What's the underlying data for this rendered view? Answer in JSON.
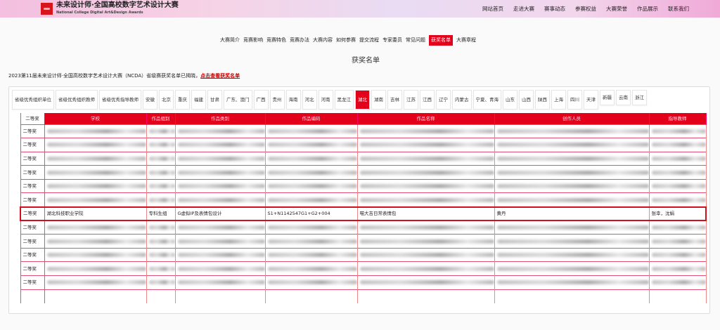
{
  "header": {
    "title": "未来设计师·全国高校数字艺术设计大赛",
    "subtitle": "National College Digital Art&Design Awards",
    "nav": [
      "网站首页",
      "走进大赛",
      "赛事动态",
      "参赛权益",
      "大赛荣誉",
      "作品展示",
      "联系我们"
    ]
  },
  "subnav": {
    "items": [
      "大赛简介",
      "竞赛影响",
      "竞赛特色",
      "竞赛办法",
      "大赛内容",
      "如何参赛",
      "提交流程",
      "专家委员",
      "常见问题",
      "获奖名单",
      "大赛章程"
    ],
    "active": "获奖名单"
  },
  "page_title": "获奖名单",
  "notice": {
    "text": "2023第11届未来设计师·全国高校数字艺术设计大赛（NCDA）省级赛获奖名单已揭晓，",
    "link": "点击查看获奖名单"
  },
  "tabs": {
    "items": [
      "省级优秀组织单位",
      "省级优秀组织教师",
      "省级优秀指导教师",
      "安徽",
      "北京",
      "重庆",
      "福建",
      "甘肃",
      "广东、澳门",
      "广西",
      "贵州",
      "海南",
      "河北",
      "河南",
      "黑龙江",
      "湖北",
      "湖南",
      "吉林",
      "江苏",
      "江西",
      "辽宁",
      "内蒙古",
      "宁夏、青海",
      "山东",
      "山西",
      "陕西",
      "上海",
      "四川",
      "天津",
      "新疆",
      "云南",
      "浙江"
    ],
    "active": "湖北"
  },
  "table": {
    "award_label": "二等奖",
    "columns": [
      "学校",
      "作品组别",
      "作品类别",
      "作品编码",
      "作品名称",
      "创作人员",
      "指导教师"
    ],
    "rows_before": 6,
    "rows_after": 5,
    "highlight": {
      "award": "二等奖",
      "school": "湖北科技职业学院",
      "group": "专科生组",
      "category": "G虚拟IP及表情包设计",
      "code": "S1+N1142547G1+G2+004",
      "name": "喵大吉日常表情包",
      "creator": "黄丹",
      "advisor": "张幸，沈娟"
    }
  },
  "colors": {
    "accent": "#e3001b"
  }
}
